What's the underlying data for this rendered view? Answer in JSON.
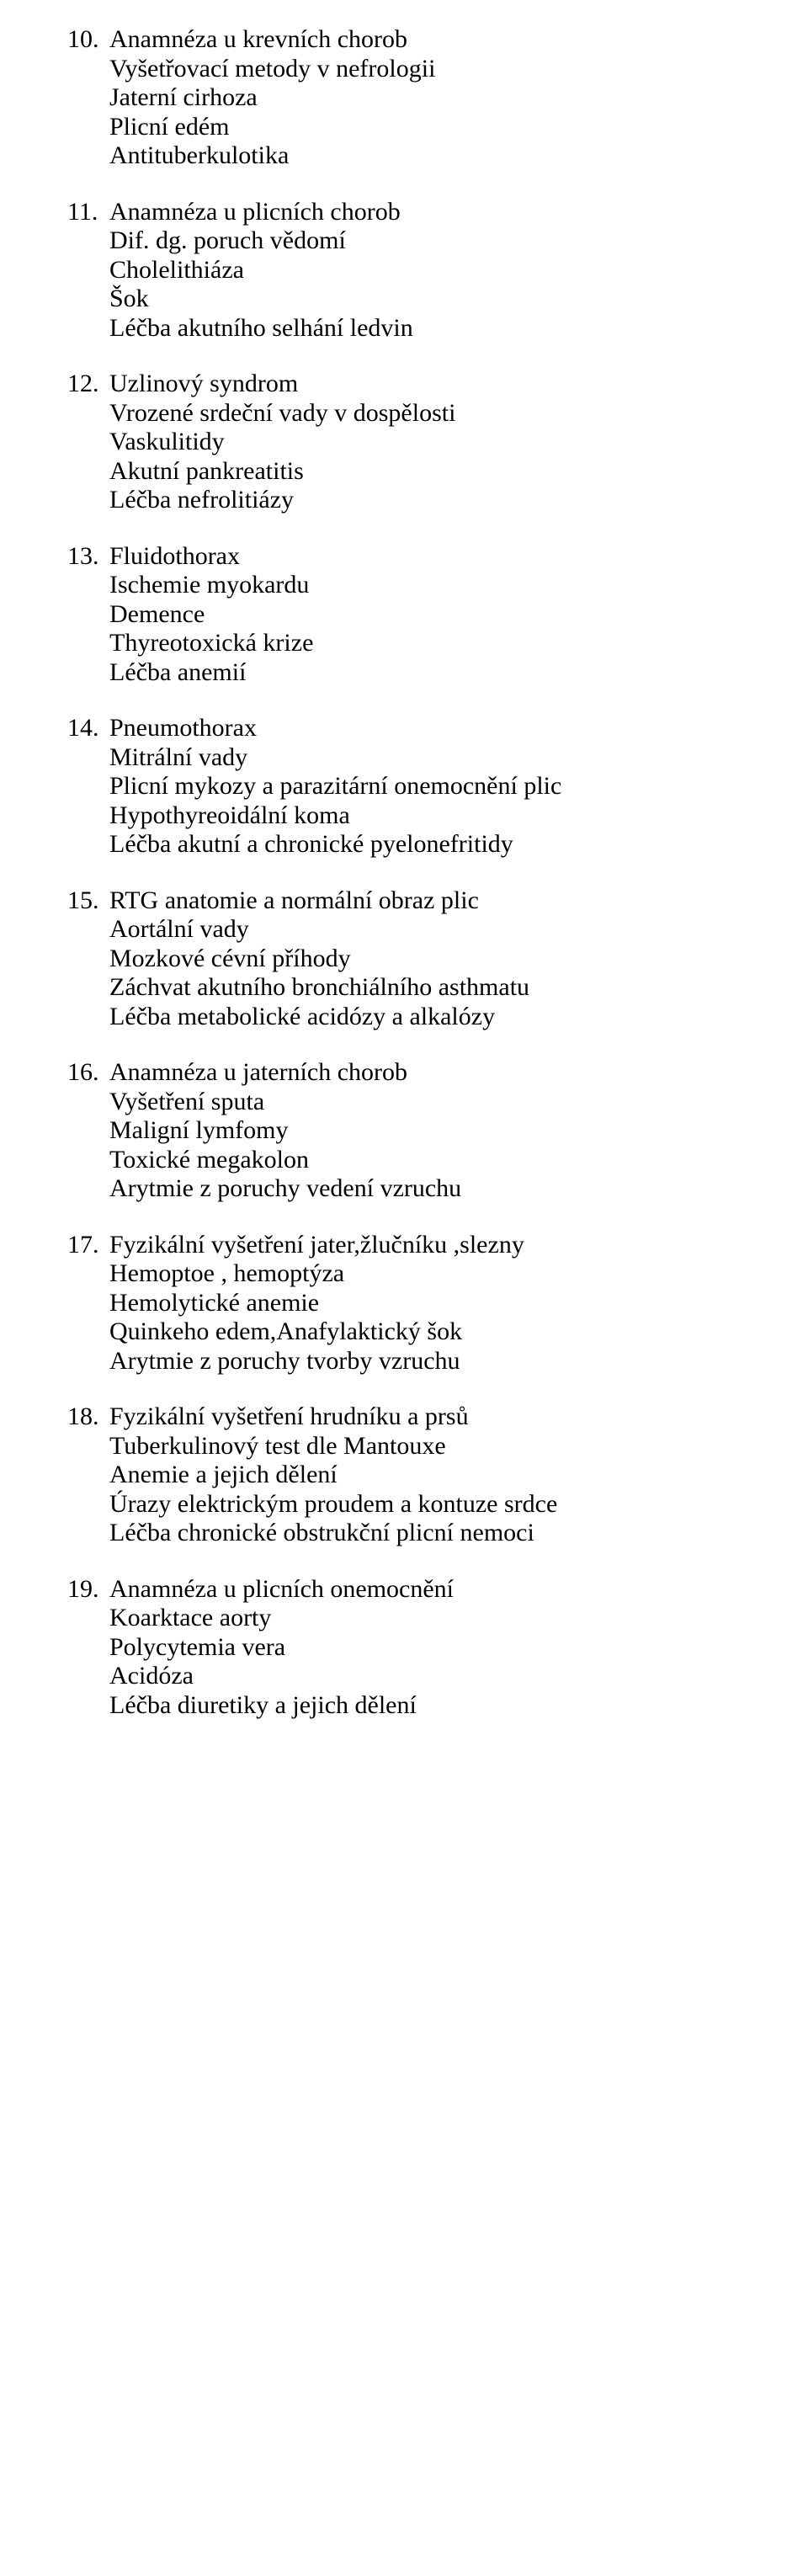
{
  "font_family": "Times New Roman",
  "font_size_pt": 22,
  "text_color": "#000000",
  "background_color": "#ffffff",
  "list_start": 10,
  "items": [
    {
      "number": "10.",
      "lines": [
        "Anamnéza u krevních chorob",
        "Vyšetřovací metody  v nefrologii",
        "Jaterní cirhoza",
        "Plicní edém",
        "Antituberkulotika"
      ]
    },
    {
      "number": "11.",
      "lines": [
        "Anamnéza u plicních chorob",
        "Dif. dg. poruch vědomí",
        "Cholelithiáza",
        "Šok",
        "Léčba akutního selhání ledvin"
      ]
    },
    {
      "number": "12.",
      "lines": [
        "Uzlinový syndrom",
        "Vrozené srdeční vady v dospělosti",
        "Vaskulitidy",
        "Akutní pankreatitis",
        "Léčba nefrolitiázy"
      ]
    },
    {
      "number": "13.",
      "lines": [
        "Fluidothorax",
        "Ischemie myokardu",
        "Demence",
        "Thyreotoxická krize",
        "Léčba anemií"
      ]
    },
    {
      "number": "14.",
      "lines": [
        "Pneumothorax",
        "Mitrální vady",
        "Plicní mykozy a parazitární onemocnění plic",
        "Hypothyreoidální koma",
        "Léčba akutní a chronické pyelonefritidy"
      ]
    },
    {
      "number": "15.",
      "lines": [
        "RTG anatomie a normální obraz plic",
        "Aortální vady",
        "Mozkové cévní příhody",
        "Záchvat akutního bronchiálního asthmatu",
        "Léčba metabolické acidózy a alkalózy"
      ]
    },
    {
      "number": "16.",
      "lines": [
        "Anamnéza u jaterních chorob",
        "Vyšetření sputa",
        "Maligní lymfomy",
        "Toxické megakolon",
        "Arytmie z poruchy vedení vzruchu"
      ]
    },
    {
      "number": "17.",
      "lines": [
        "Fyzikální vyšetření jater,žlučníku ,slezny",
        "Hemoptoe , hemoptýza",
        "Hemolytické anemie",
        "Quinkeho edem,Anafylaktický šok",
        "Arytmie z poruchy tvorby vzruchu"
      ]
    },
    {
      "number": "18.",
      "lines": [
        "Fyzikální vyšetření hrudníku a prsů",
        "Tuberkulinový test dle Mantouxe",
        "Anemie a jejich dělení",
        "Úrazy elektrickým proudem a kontuze srdce",
        "Léčba chronické obstrukční plicní nemoci"
      ]
    },
    {
      "number": "19.",
      "lines": [
        "Anamnéza u plicních onemocnění",
        "Koarktace aorty",
        "Polycytemia vera",
        "Acidóza",
        "Léčba diuretiky a jejich dělení"
      ]
    }
  ]
}
